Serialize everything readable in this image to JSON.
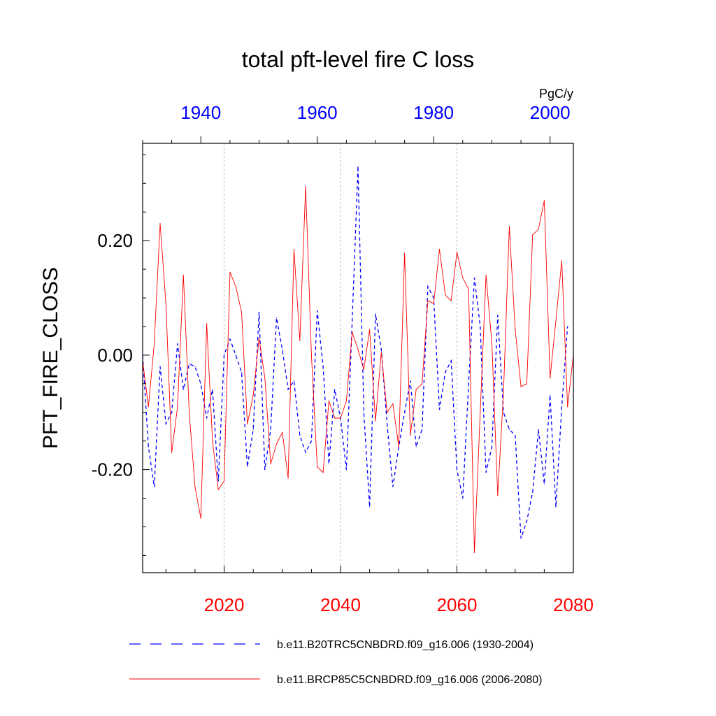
{
  "chart_data": {
    "type": "line",
    "title": "total pft-level fire C loss",
    "ylabel": "PFT_FIRE_CLOSS",
    "units": "PgC/y",
    "ylim": [
      -0.38,
      0.37
    ],
    "yticks": [
      -0.2,
      0.0,
      0.2
    ],
    "ytick_labels": [
      "-0.20",
      "0.00",
      "0.20"
    ],
    "y_minor_step": 0.05,
    "bottom_axis": {
      "range": [
        2006,
        2080
      ],
      "ticks": [
        2020,
        2040,
        2060,
        2080
      ],
      "labels": [
        "2020",
        "2040",
        "2060",
        "2080"
      ],
      "color": "#ff0000",
      "minor_step": 5
    },
    "top_axis": {
      "range": [
        1930,
        2004
      ],
      "ticks": [
        1940,
        1960,
        1980,
        2000
      ],
      "labels": [
        "1940",
        "1960",
        "1980",
        "2000"
      ],
      "color": "#0000ff",
      "minor_step": 5
    },
    "grid_lines_at": [
      2020,
      2040,
      2060
    ],
    "series": [
      {
        "name": "b.e11.B20TRC5CNBDRD.f09_g16.006 (1930-2004)",
        "axis": "top",
        "color": "#0000ff",
        "dash": true,
        "x_start": 1930,
        "values": [
          0.0,
          -0.16,
          -0.23,
          -0.02,
          -0.12,
          -0.1,
          0.02,
          -0.06,
          -0.015,
          -0.02,
          -0.05,
          -0.11,
          -0.06,
          -0.22,
          0.0,
          0.028,
          0.0,
          -0.03,
          -0.195,
          -0.13,
          0.075,
          -0.2,
          -0.13,
          0.065,
          0.01,
          -0.06,
          -0.045,
          -0.14,
          -0.17,
          -0.15,
          0.078,
          -0.02,
          -0.19,
          -0.06,
          -0.11,
          -0.2,
          0.06,
          0.33,
          -0.1,
          -0.265,
          0.072,
          0.01,
          -0.12,
          -0.23,
          -0.16,
          -0.1,
          -0.045,
          -0.16,
          -0.13,
          0.12,
          0.1,
          -0.095,
          -0.03,
          -0.01,
          -0.2,
          -0.25,
          -0.05,
          0.135,
          0.05,
          -0.205,
          -0.16,
          0.07,
          -0.1,
          -0.13,
          -0.14,
          -0.32,
          -0.29,
          -0.24,
          -0.13,
          -0.225,
          -0.07,
          -0.265,
          -0.09,
          0.05
        ]
      },
      {
        "name": "b.e11.BRCP85C5CNBDRD.f09_g16.006 (2006-2080)",
        "axis": "bottom",
        "color": "#ff0000",
        "dash": false,
        "x_start": 2006,
        "values": [
          -0.01,
          -0.09,
          0.02,
          0.23,
          0.09,
          -0.17,
          -0.09,
          0.14,
          -0.1,
          -0.23,
          -0.285,
          0.055,
          -0.15,
          -0.235,
          -0.22,
          0.145,
          0.12,
          0.075,
          -0.12,
          -0.07,
          0.03,
          -0.04,
          -0.19,
          -0.155,
          -0.135,
          -0.215,
          0.185,
          0.025,
          0.295,
          0.0,
          -0.195,
          -0.205,
          -0.08,
          -0.11,
          -0.11,
          -0.08,
          0.04,
          0.01,
          -0.025,
          0.045,
          -0.115,
          0.005,
          -0.1,
          -0.085,
          -0.16,
          0.178,
          -0.14,
          -0.06,
          -0.05,
          0.095,
          0.09,
          0.185,
          0.105,
          0.095,
          0.18,
          0.135,
          0.115,
          -0.345,
          -0.1,
          0.14,
          0.02,
          -0.245,
          -0.065,
          0.225,
          0.045,
          -0.055,
          -0.05,
          0.21,
          0.22,
          0.27,
          -0.04,
          0.06,
          0.165,
          -0.09,
          0.0
        ]
      }
    ],
    "legend": {
      "placement": "bottom",
      "entries": [
        "b.e11.B20TRC5CNBDRD.f09_g16.006 (1930-2004)",
        "b.e11.BRCP85C5CNBDRD.f09_g16.006 (2006-2080)"
      ]
    }
  }
}
